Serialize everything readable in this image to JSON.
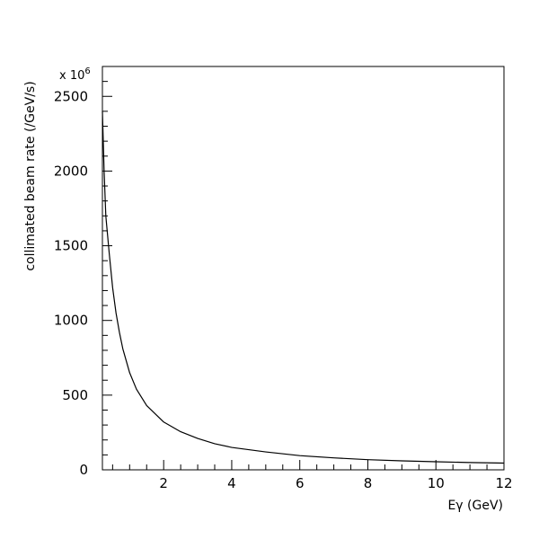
{
  "chart_data": {
    "type": "line",
    "title": "",
    "xlabel": "Eγ (GeV)",
    "ylabel": "collimated beam rate (/GeV/s)",
    "y_multiplier_text": "x 10",
    "y_multiplier_exponent": "6",
    "xlim": [
      0.2,
      12
    ],
    "ylim": [
      0,
      2700
    ],
    "x_ticks": [
      2,
      4,
      6,
      8,
      10,
      12
    ],
    "x_tick_labels": [
      "2",
      "4",
      "6",
      "8",
      "10",
      "12"
    ],
    "y_ticks": [
      0,
      500,
      1000,
      1500,
      2000,
      2500
    ],
    "y_tick_labels": [
      "0",
      "500",
      "1000",
      "1500",
      "2000",
      "2500"
    ],
    "grid": false,
    "series": [
      {
        "color": "#000000",
        "x": [
          0.2,
          0.25,
          0.3,
          0.4,
          0.5,
          0.6,
          0.7,
          0.8,
          1.0,
          1.2,
          1.5,
          2.0,
          2.5,
          3.0,
          3.5,
          4.0,
          5.0,
          6.0,
          7.0,
          8.0,
          9.0,
          10.0,
          11.0,
          12.0
        ],
        "y": [
          2400,
          2000,
          1700,
          1450,
          1220,
          1050,
          920,
          810,
          650,
          540,
          430,
          320,
          255,
          210,
          175,
          150,
          120,
          95,
          80,
          68,
          60,
          54,
          49,
          45
        ]
      }
    ]
  }
}
